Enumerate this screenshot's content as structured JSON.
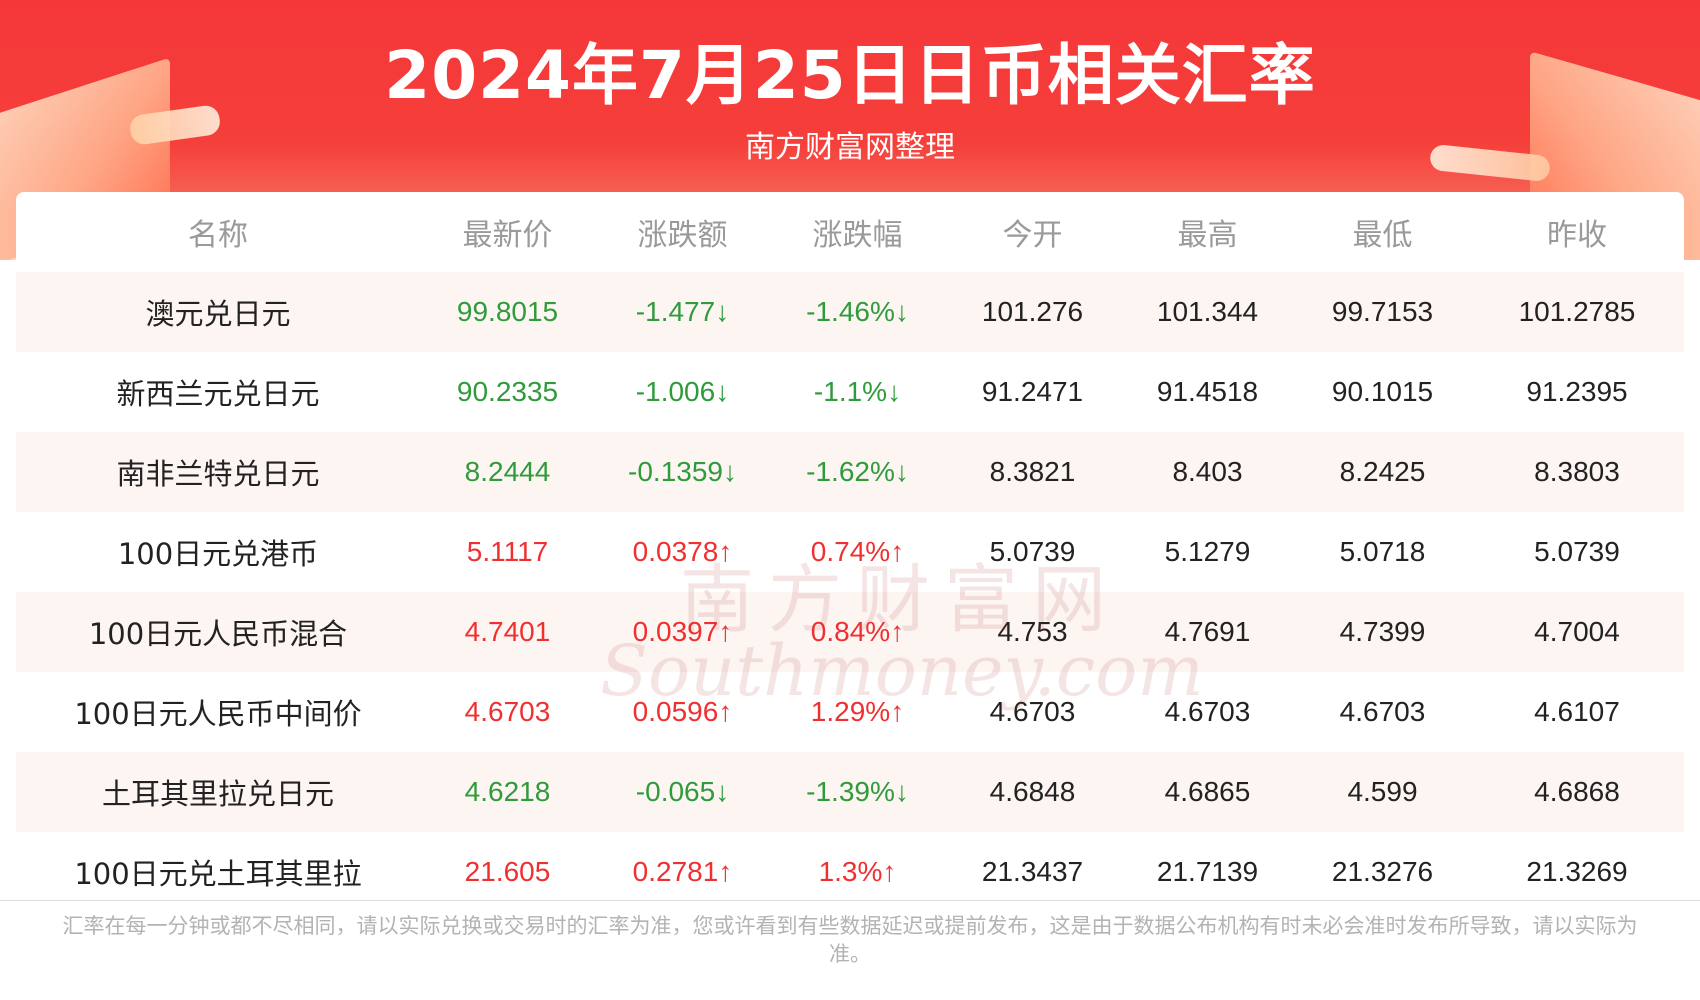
{
  "header": {
    "title": "2024年7月25日日币相关汇率",
    "subtitle": "南方财富网整理"
  },
  "table": {
    "columns": [
      "名称",
      "最新价",
      "涨跌额",
      "涨跌幅",
      "今开",
      "最高",
      "最低",
      "昨收"
    ],
    "rows": [
      {
        "name": "澳元兑日元",
        "latest": "99.8015",
        "change": "-1.477↓",
        "pct": "-1.46%↓",
        "open": "101.276",
        "high": "101.344",
        "low": "99.7153",
        "prev": "101.2785",
        "trend": "down"
      },
      {
        "name": "新西兰元兑日元",
        "latest": "90.2335",
        "change": "-1.006↓",
        "pct": "-1.1%↓",
        "open": "91.2471",
        "high": "91.4518",
        "low": "90.1015",
        "prev": "91.2395",
        "trend": "down"
      },
      {
        "name": "南非兰特兑日元",
        "latest": "8.2444",
        "change": "-0.1359↓",
        "pct": "-1.62%↓",
        "open": "8.3821",
        "high": "8.403",
        "low": "8.2425",
        "prev": "8.3803",
        "trend": "down"
      },
      {
        "name": "100日元兑港币",
        "latest": "5.1117",
        "change": "0.0378↑",
        "pct": "0.74%↑",
        "open": "5.0739",
        "high": "5.1279",
        "low": "5.0718",
        "prev": "5.0739",
        "trend": "up"
      },
      {
        "name": "100日元人民币混合",
        "latest": "4.7401",
        "change": "0.0397↑",
        "pct": "0.84%↑",
        "open": "4.753",
        "high": "4.7691",
        "low": "4.7399",
        "prev": "4.7004",
        "trend": "up"
      },
      {
        "name": "100日元人民币中间价",
        "latest": "4.6703",
        "change": "0.0596↑",
        "pct": "1.29%↑",
        "open": "4.6703",
        "high": "4.6703",
        "low": "4.6703",
        "prev": "4.6107",
        "trend": "up"
      },
      {
        "name": "土耳其里拉兑日元",
        "latest": "4.6218",
        "change": "-0.065↓",
        "pct": "-1.39%↓",
        "open": "4.6848",
        "high": "4.6865",
        "low": "4.599",
        "prev": "4.6868",
        "trend": "down"
      },
      {
        "name": "100日元兑土耳其里拉",
        "latest": "21.605",
        "change": "0.2781↑",
        "pct": "1.3%↑",
        "open": "21.3437",
        "high": "21.7139",
        "low": "21.3276",
        "prev": "21.3269",
        "trend": "up"
      }
    ]
  },
  "watermark": {
    "line1": "南方财富网",
    "line2": "Southmoney.com"
  },
  "footer": {
    "disclaimer": "汇率在每一分钟或都不尽相同，请以实际兑换或交易时的汇率为准，您或许看到有些数据延迟或提前发布，这是由于数据公布机构有时未必会准时发布所导致，请以实际为准。"
  },
  "colors": {
    "header_red": "#f5373a",
    "up": "#f03030",
    "down": "#2f9b3b",
    "row_tint": "#fdf5f2"
  }
}
